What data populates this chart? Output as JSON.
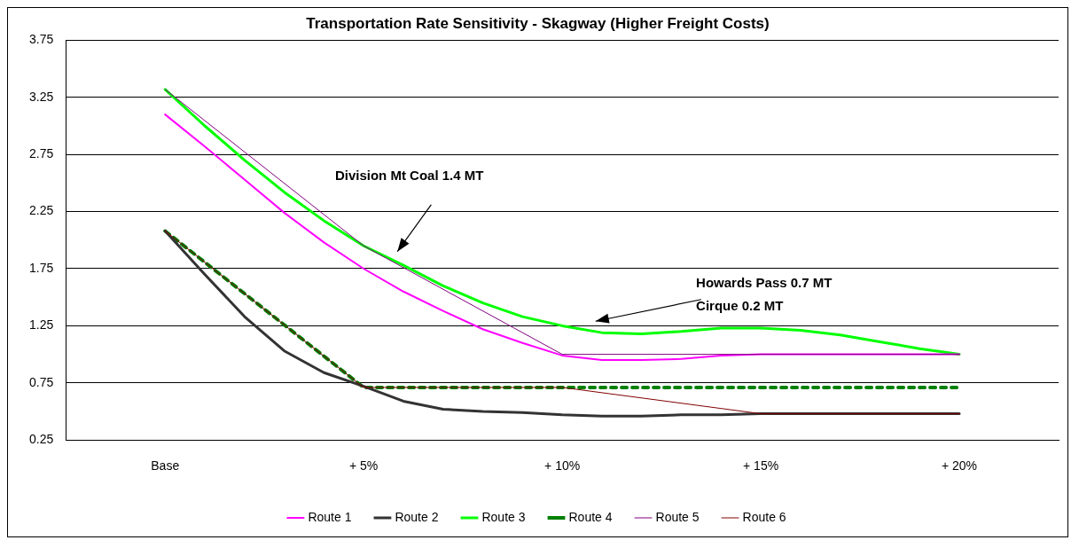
{
  "chart_data": {
    "type": "line",
    "title": "Transportation Rate Sensitivity - Skagway (Higher Freight Costs)",
    "xlim": [
      -2.5,
      22.5
    ],
    "xticks": [
      {
        "value": 0,
        "label": "Base"
      },
      {
        "value": 5,
        "label": "+ 5%"
      },
      {
        "value": 10,
        "label": "+ 10%"
      },
      {
        "value": 15,
        "label": "+ 15%"
      },
      {
        "value": 20,
        "label": "+ 20%"
      }
    ],
    "ylim": [
      0.25,
      3.75
    ],
    "yticks": [
      0.25,
      0.75,
      1.25,
      1.75,
      2.25,
      2.75,
      3.25,
      3.75
    ],
    "grid": "y",
    "legend": "bottom",
    "marker": "none",
    "series": [
      {
        "name": "Route 1",
        "color": "#ff00ff",
        "x": [
          0,
          1,
          2,
          3,
          4,
          5,
          6,
          7,
          8,
          9,
          10,
          11,
          12,
          13,
          14,
          15,
          16,
          17,
          18,
          19,
          20
        ],
        "values": [
          3.1,
          2.82,
          2.53,
          2.24,
          1.98,
          1.75,
          1.55,
          1.38,
          1.22,
          1.1,
          0.99,
          0.95,
          0.95,
          0.96,
          0.99,
          1.0,
          1.0,
          1.0,
          1.0,
          1.0,
          1.0
        ]
      },
      {
        "name": "Route 2",
        "color": "#333333",
        "x": [
          0,
          1,
          2,
          3,
          4,
          5,
          6,
          7,
          8,
          9,
          10,
          11,
          12,
          13,
          14,
          15,
          16,
          17,
          18,
          19,
          20
        ],
        "values": [
          2.08,
          1.7,
          1.33,
          1.03,
          0.84,
          0.72,
          0.59,
          0.52,
          0.5,
          0.49,
          0.47,
          0.46,
          0.46,
          0.47,
          0.47,
          0.48,
          0.48,
          0.48,
          0.48,
          0.48,
          0.48
        ]
      },
      {
        "name": "Route 3",
        "color": "#00ff00",
        "x": [
          0,
          1,
          2,
          3,
          4,
          5,
          6,
          7,
          8,
          9,
          10,
          11,
          12,
          13,
          14,
          15,
          16,
          17,
          18,
          19,
          20
        ],
        "values": [
          3.32,
          3.0,
          2.7,
          2.42,
          2.17,
          1.95,
          1.78,
          1.6,
          1.45,
          1.33,
          1.25,
          1.19,
          1.18,
          1.2,
          1.23,
          1.23,
          1.21,
          1.17,
          1.11,
          1.05,
          1.0
        ]
      },
      {
        "name": "Route 4",
        "color": "#008000",
        "line_style": "dashed",
        "x": [
          0,
          5,
          20
        ],
        "values": [
          2.08,
          0.71,
          0.71
        ]
      },
      {
        "name": "Route 5",
        "color": "#800080",
        "x": [
          0,
          5,
          10,
          20
        ],
        "values": [
          3.32,
          1.95,
          1.0,
          1.0
        ]
      },
      {
        "name": "Route 6",
        "color": "#800000",
        "x": [
          0,
          5,
          10,
          15,
          20
        ],
        "values": [
          2.08,
          0.71,
          0.71,
          0.48,
          0.48
        ]
      }
    ],
    "annotations": [
      "Division Mt Coal 1.4 MT",
      "Howards Pass 0.7 MT",
      "Cirque 0.2 MT"
    ]
  }
}
